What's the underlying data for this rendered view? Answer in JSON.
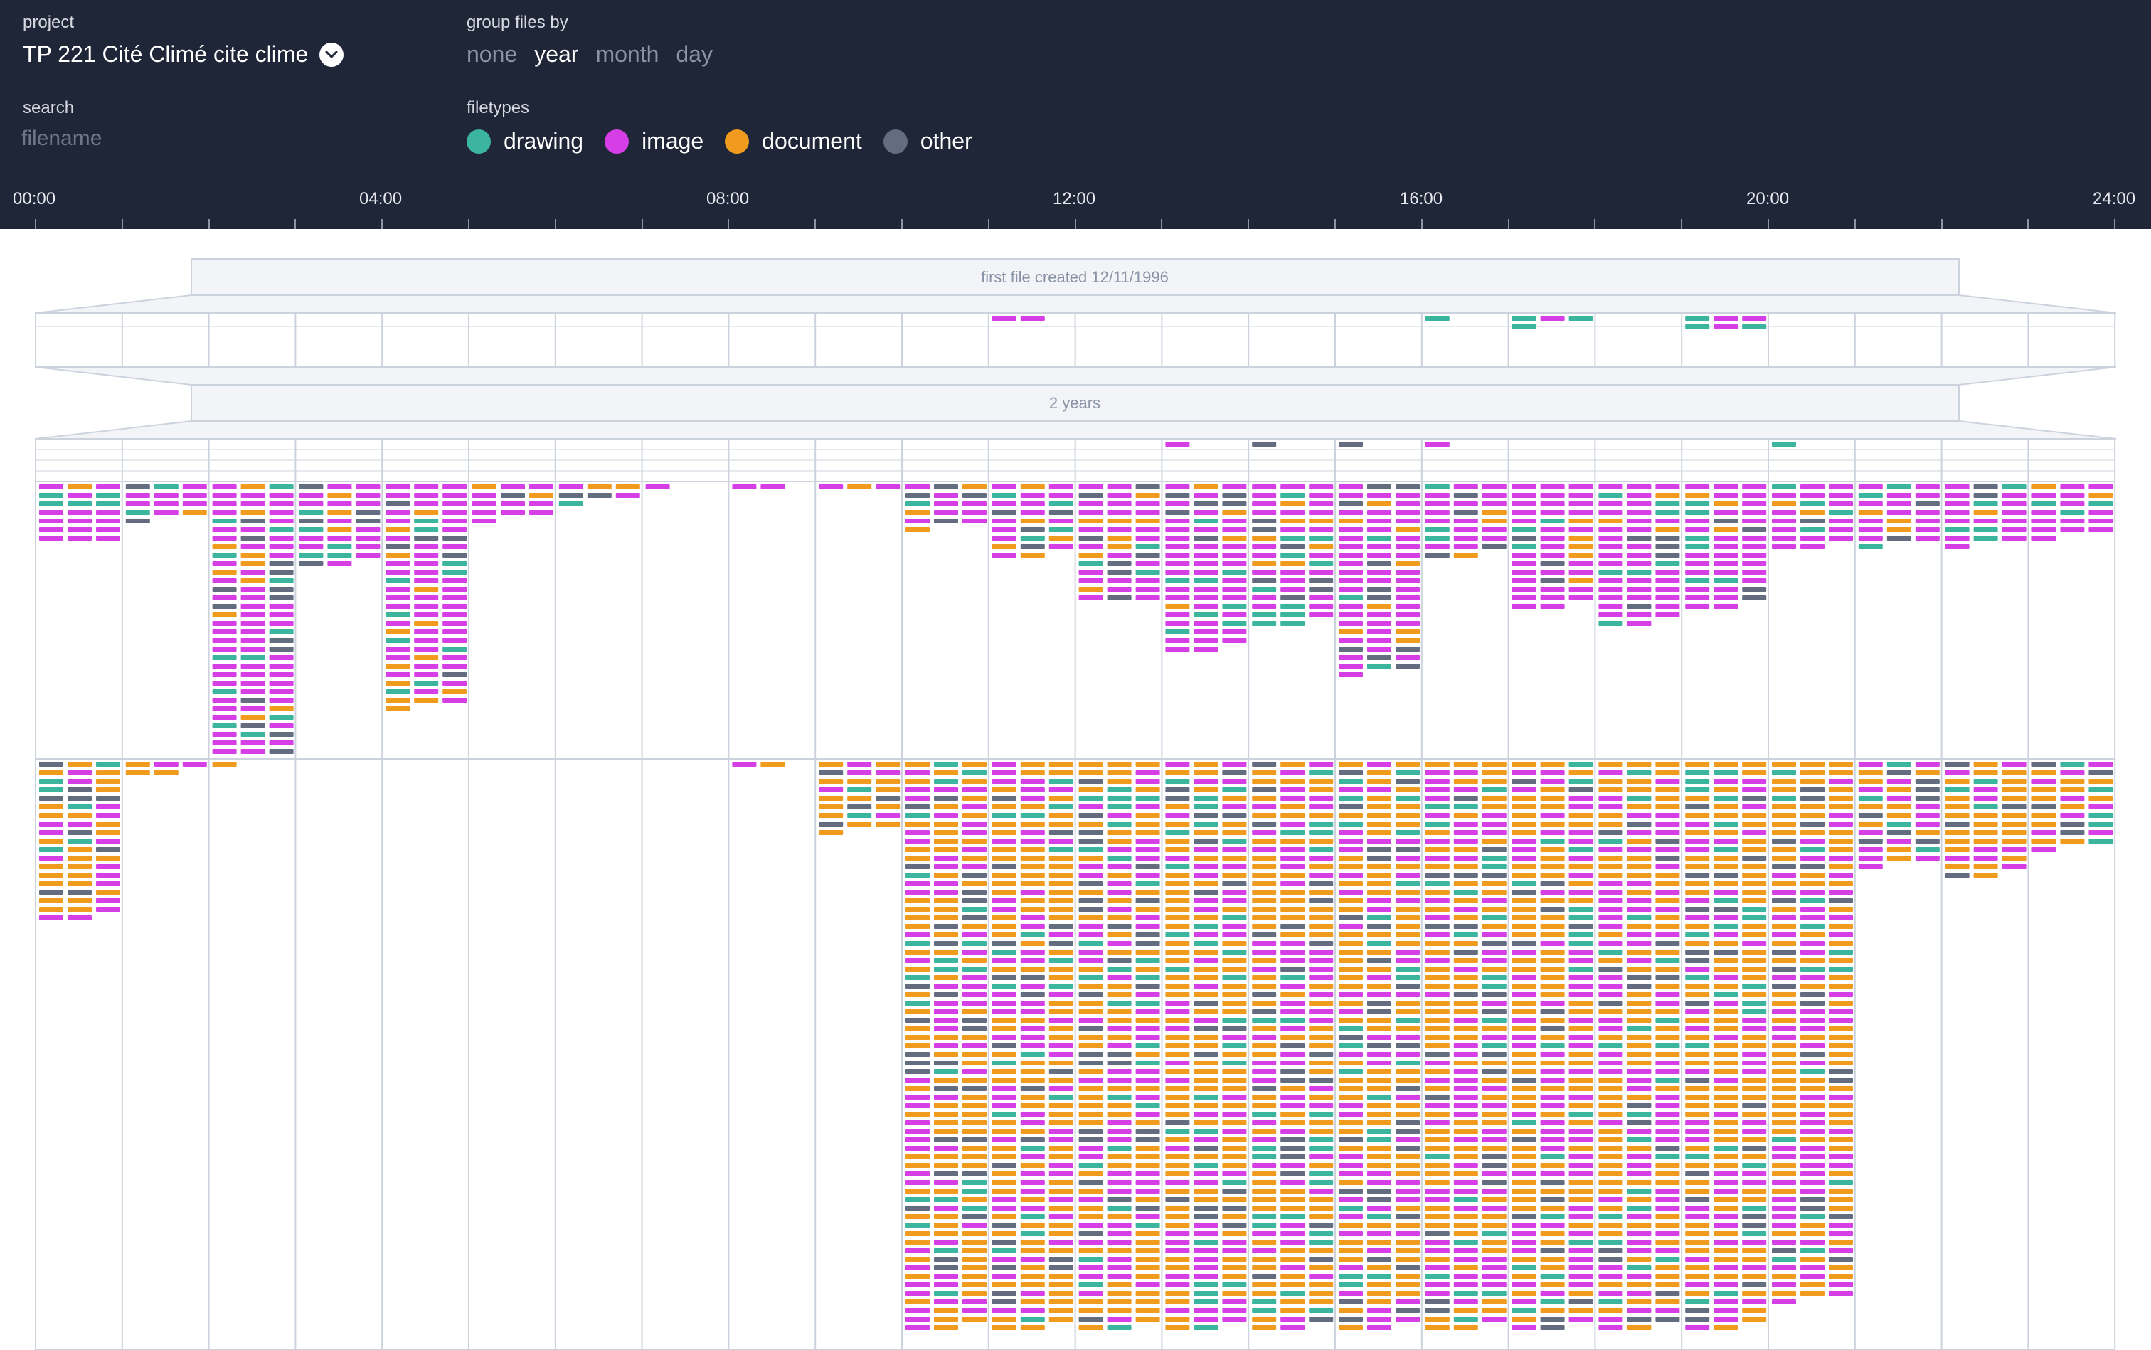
{
  "header": {
    "project_label": "project",
    "project_name": "TP 221 Cité Climé cite clime",
    "group_label": "group files by",
    "group_options": [
      "none",
      "year",
      "month",
      "day"
    ],
    "group_active": "year",
    "search_label": "search",
    "search_placeholder": "filename",
    "filetypes_label": "filetypes",
    "filetypes": [
      {
        "name": "drawing",
        "color": "#3bb59e"
      },
      {
        "name": "image",
        "color": "#d63fe6"
      },
      {
        "name": "document",
        "color": "#f09a1e"
      },
      {
        "name": "other",
        "color": "#646d80"
      }
    ]
  },
  "timeline": {
    "hour_labels": [
      "00:00",
      "04:00",
      "08:00",
      "12:00",
      "16:00",
      "20:00",
      "24:00"
    ],
    "first_file_text": "first file created 12/11/1996",
    "span_text": "2 years"
  },
  "colors": {
    "drawing": "#3bb59e",
    "image": "#d63fe6",
    "document": "#f09a1e",
    "other": "#646d80",
    "grid": "#cdd3dd",
    "banner_fill": "#f2f4f7",
    "banner_stroke": "#cdd3dd",
    "banner_text": "#8a93a6"
  },
  "chart_data": {
    "type": "heatmap",
    "description_units": "files per hour of day, stacked per group row",
    "x_range": [
      0,
      24
    ],
    "rows": [
      {
        "group": "row-1996",
        "counts": [
          0,
          0,
          0,
          0,
          0,
          0,
          0,
          0,
          0,
          0,
          0,
          2,
          0,
          0,
          0,
          0,
          1,
          4,
          0,
          6,
          0,
          0,
          0,
          0
        ]
      },
      {
        "group": "row-1997-small",
        "counts": [
          0,
          0,
          0,
          0,
          0,
          0,
          0,
          0,
          0,
          0,
          0,
          0,
          0,
          1,
          1,
          1,
          1,
          0,
          0,
          0,
          1,
          0,
          0,
          0
        ]
      },
      {
        "group": "row-1997",
        "counts": [
          21,
          13,
          96,
          29,
          79,
          13,
          7,
          1,
          2,
          3,
          16,
          26,
          42,
          59,
          50,
          67,
          26,
          44,
          50,
          44,
          23,
          22,
          22,
          19
        ]
      },
      {
        "group": "row-1998",
        "counts": [
          56,
          5,
          1,
          0,
          0,
          0,
          0,
          0,
          2,
          25,
          200,
          200,
          200,
          200,
          200,
          200,
          200,
          200,
          200,
          200,
          190,
          37,
          41,
          31
        ]
      }
    ]
  }
}
